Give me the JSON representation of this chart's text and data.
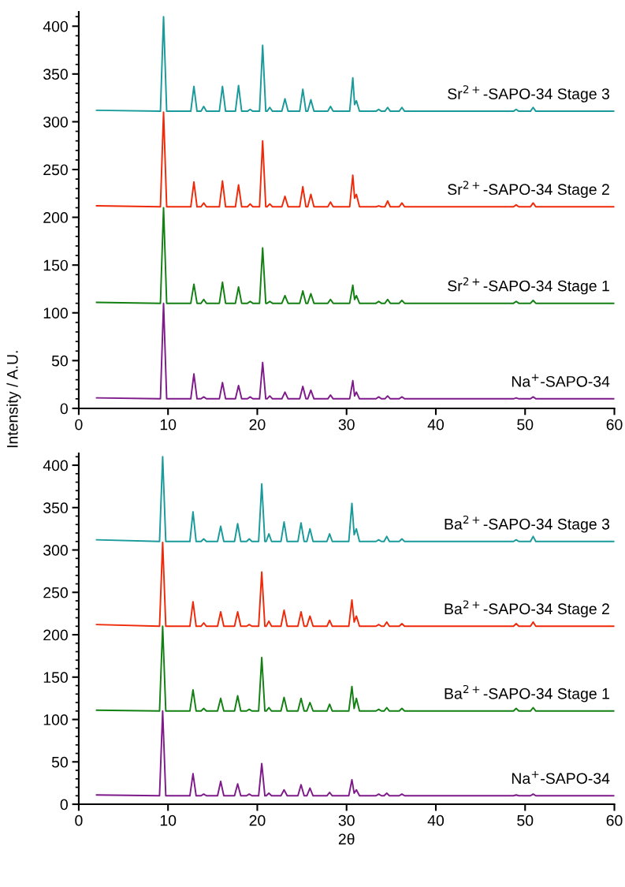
{
  "chart_data": [
    {
      "type": "line",
      "ylabel": "Intensity / A.U.",
      "xlim": [
        0,
        60
      ],
      "xticks": [
        0,
        10,
        20,
        30,
        40,
        50,
        60
      ],
      "ylim": [
        0,
        415
      ],
      "yticks": [
        0,
        50,
        100,
        150,
        200,
        250,
        300,
        350,
        400
      ],
      "grid": false,
      "legend": false,
      "marker": "none",
      "line_style": "solid",
      "x": [
        2,
        9.15,
        9.5,
        9.85,
        12.55,
        12.9,
        13.25,
        13.7,
        14.0,
        14.3,
        15.75,
        16.1,
        16.45,
        17.55,
        17.9,
        18.25,
        18.9,
        19.2,
        19.5,
        20.25,
        20.6,
        20.95,
        21.1,
        21.4,
        21.7,
        22.75,
        23.1,
        23.45,
        24.75,
        25.1,
        25.45,
        25.65,
        26.0,
        26.35,
        27.9,
        28.2,
        28.5,
        30.35,
        30.7,
        30.9,
        31.1,
        31.45,
        33.3,
        33.6,
        33.9,
        34.3,
        34.6,
        34.9,
        35.9,
        36.2,
        36.5,
        48.7,
        49.0,
        49.3,
        50.6,
        50.9,
        51.2,
        60
      ],
      "series": [
        {
          "name": "Sr$^{2+}$-SAPO-34 Stage 3",
          "color": "#1a9a9a",
          "values": [
            312,
            311,
            410,
            311,
            311,
            337,
            311,
            311,
            316,
            311,
            311,
            337,
            311,
            311,
            338,
            311,
            311,
            313,
            311,
            311,
            380,
            311,
            311,
            315,
            311,
            311,
            324,
            311,
            311,
            334,
            311,
            311,
            323,
            311,
            311,
            316,
            311,
            311,
            346,
            318,
            322,
            311,
            311,
            313,
            311,
            311,
            315,
            311,
            311,
            315,
            311,
            311,
            313,
            311,
            311,
            315,
            311,
            311
          ]
        },
        {
          "name": "Sr$^{2+}$-SAPO-34 Stage 2",
          "color": "#ee2a0a",
          "values": [
            212,
            211,
            310,
            211,
            211,
            237,
            211,
            211,
            215,
            211,
            211,
            238,
            211,
            211,
            234,
            211,
            211,
            214,
            211,
            211,
            280,
            211,
            211,
            214,
            211,
            211,
            222,
            211,
            211,
            232,
            211,
            211,
            224,
            211,
            211,
            216,
            211,
            211,
            244,
            220,
            224,
            211,
            211,
            212,
            211,
            211,
            217,
            211,
            211,
            215,
            211,
            211,
            213,
            211,
            211,
            215,
            211,
            211
          ]
        },
        {
          "name": "Sr$^{2+}$-SAPO-34 Stage 1",
          "color": "#138013",
          "values": [
            111,
            110,
            210,
            110,
            110,
            130,
            110,
            110,
            114,
            110,
            110,
            132,
            110,
            110,
            127,
            110,
            110,
            112,
            110,
            110,
            168,
            110,
            110,
            112,
            110,
            110,
            118,
            110,
            110,
            123,
            110,
            110,
            120,
            110,
            110,
            114,
            110,
            110,
            129,
            114,
            118,
            110,
            110,
            112,
            110,
            110,
            114,
            110,
            110,
            113,
            110,
            110,
            112,
            110,
            110,
            113,
            110,
            110
          ]
        },
        {
          "name": "Na$^{+}$-SAPO-34",
          "color": "#7e1a8a",
          "values": [
            11,
            10,
            110,
            10,
            10,
            36,
            10,
            10,
            12,
            10,
            10,
            27,
            10,
            10,
            24,
            10,
            10,
            12,
            10,
            10,
            48,
            10,
            10,
            13,
            10,
            10,
            17,
            10,
            10,
            23,
            10,
            10,
            19,
            10,
            10,
            14,
            10,
            10,
            29,
            13,
            17,
            10,
            10,
            12,
            10,
            10,
            13,
            10,
            10,
            12,
            10,
            10,
            11,
            10,
            10,
            12,
            10,
            10
          ]
        }
      ]
    },
    {
      "type": "line",
      "xlabel": "2θ",
      "xlim": [
        0,
        60
      ],
      "xticks": [
        0,
        10,
        20,
        30,
        40,
        50,
        60
      ],
      "ylim": [
        0,
        414
      ],
      "yticks": [
        0,
        50,
        100,
        150,
        200,
        250,
        300,
        350,
        400
      ],
      "grid": false,
      "legend": false,
      "marker": "none",
      "line_style": "solid",
      "x": [
        2,
        9.05,
        9.4,
        9.75,
        12.45,
        12.8,
        13.15,
        13.7,
        14.0,
        14.3,
        15.55,
        15.9,
        16.25,
        17.45,
        17.8,
        18.15,
        18.8,
        19.1,
        19.4,
        20.15,
        20.5,
        20.85,
        21.0,
        21.3,
        21.6,
        22.65,
        23.0,
        23.35,
        24.55,
        24.9,
        25.25,
        25.55,
        25.9,
        26.25,
        27.8,
        28.1,
        28.4,
        30.25,
        30.6,
        30.85,
        31.1,
        31.45,
        33.3,
        33.6,
        33.9,
        34.2,
        34.5,
        34.8,
        35.9,
        36.2,
        36.5,
        48.7,
        49.0,
        49.3,
        50.6,
        50.9,
        51.2,
        60
      ],
      "series": [
        {
          "name": "Ba$^{2+}$-SAPO-34 Stage 3",
          "color": "#1a9a9a",
          "values": [
            312,
            310,
            410,
            310,
            310,
            345,
            310,
            310,
            313,
            310,
            310,
            328,
            310,
            310,
            331,
            310,
            310,
            313,
            310,
            310,
            378,
            310,
            310,
            319,
            310,
            310,
            333,
            310,
            310,
            332,
            310,
            310,
            325,
            310,
            310,
            319,
            310,
            310,
            355,
            318,
            325,
            310,
            310,
            312,
            310,
            310,
            316,
            310,
            310,
            313,
            310,
            310,
            312,
            310,
            310,
            316,
            310,
            310
          ]
        },
        {
          "name": "Ba$^{2+}$-SAPO-34 Stage 2",
          "color": "#ee2a0a",
          "values": [
            212,
            210,
            309,
            210,
            210,
            239,
            210,
            210,
            214,
            210,
            210,
            227,
            210,
            210,
            227,
            210,
            210,
            212,
            210,
            210,
            274,
            210,
            210,
            216,
            210,
            210,
            229,
            210,
            210,
            227,
            210,
            210,
            222,
            210,
            210,
            217,
            210,
            210,
            241,
            215,
            222,
            210,
            210,
            212,
            210,
            210,
            215,
            210,
            210,
            213,
            210,
            210,
            213,
            210,
            210,
            215,
            210,
            210
          ]
        },
        {
          "name": "Ba$^{2+}$-SAPO-34 Stage 1",
          "color": "#138013",
          "values": [
            111,
            110,
            210,
            110,
            110,
            135,
            110,
            110,
            113,
            110,
            110,
            125,
            110,
            110,
            128,
            110,
            110,
            112,
            110,
            110,
            173,
            110,
            110,
            114,
            110,
            110,
            126,
            110,
            110,
            125,
            110,
            110,
            120,
            110,
            110,
            118,
            110,
            110,
            139,
            113,
            125,
            110,
            110,
            112,
            110,
            110,
            114,
            110,
            110,
            113,
            110,
            110,
            113,
            110,
            110,
            114,
            110,
            110
          ]
        },
        {
          "name": "Na$^{+}$-SAPO-34",
          "color": "#7e1a8a",
          "values": [
            11,
            10,
            110,
            10,
            10,
            36,
            10,
            10,
            12,
            10,
            10,
            27,
            10,
            10,
            24,
            10,
            10,
            12,
            10,
            10,
            48,
            10,
            10,
            13,
            10,
            10,
            17,
            10,
            10,
            23,
            10,
            10,
            19,
            10,
            10,
            14,
            10,
            10,
            29,
            13,
            17,
            10,
            10,
            12,
            10,
            10,
            13,
            10,
            10,
            12,
            10,
            10,
            11,
            10,
            10,
            12,
            10,
            10
          ]
        }
      ]
    }
  ]
}
